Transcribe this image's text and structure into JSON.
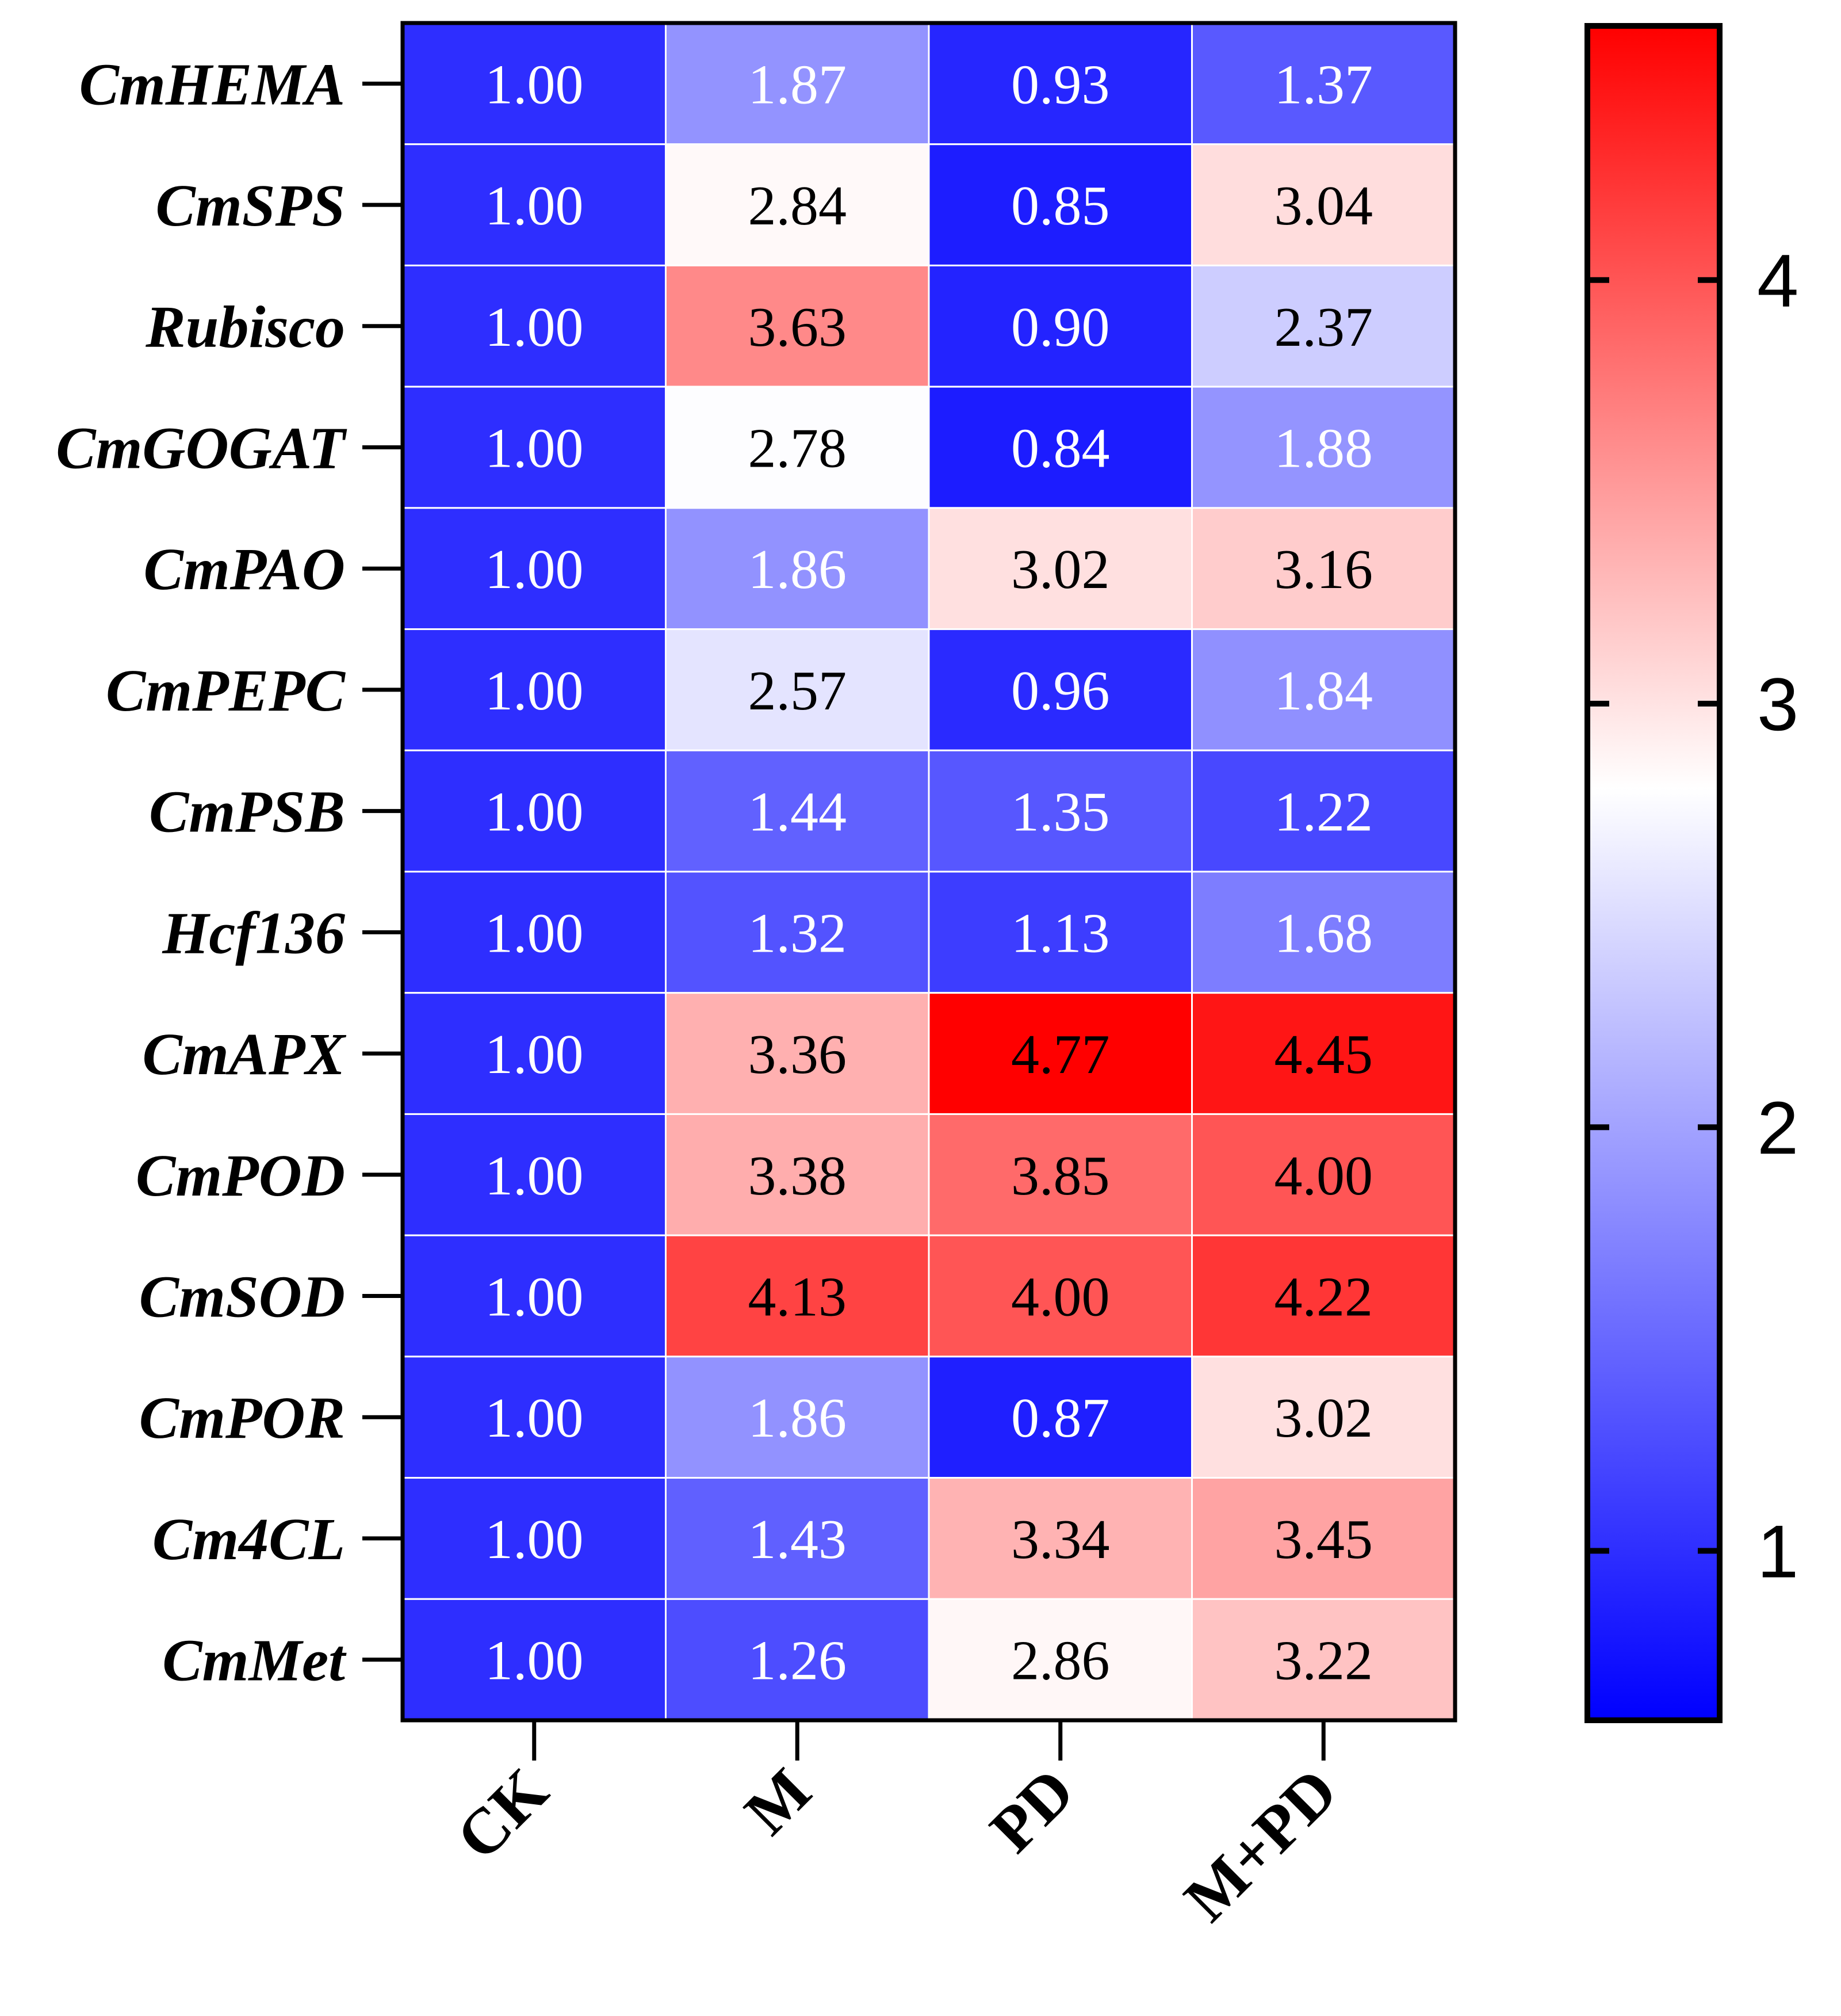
{
  "chart_data": {
    "type": "heatmap",
    "title": "",
    "xlabel": "",
    "ylabel": "",
    "rows": [
      "CmHEMA",
      "CmSPS",
      "Rubisco",
      "CmGOGAT",
      "CmPAO",
      "CmPEPC",
      "CmPSB",
      "Hcf136",
      "CmAPX",
      "CmPOD",
      "CmSOD",
      "CmPOR",
      "Cm4CL",
      "CmMet"
    ],
    "columns": [
      "CK",
      "M",
      "PD",
      "M+PD"
    ],
    "values": [
      [
        1.0,
        1.87,
        0.93,
        1.37
      ],
      [
        1.0,
        2.84,
        0.85,
        3.04
      ],
      [
        1.0,
        3.63,
        0.9,
        2.37
      ],
      [
        1.0,
        2.78,
        0.84,
        1.88
      ],
      [
        1.0,
        1.86,
        3.02,
        3.16
      ],
      [
        1.0,
        2.57,
        0.96,
        1.84
      ],
      [
        1.0,
        1.44,
        1.35,
        1.22
      ],
      [
        1.0,
        1.32,
        1.13,
        1.68
      ],
      [
        1.0,
        3.36,
        4.77,
        4.45
      ],
      [
        1.0,
        3.38,
        3.85,
        4.0
      ],
      [
        1.0,
        4.13,
        4.0,
        4.22
      ],
      [
        1.0,
        1.86,
        0.87,
        3.02
      ],
      [
        1.0,
        1.43,
        3.34,
        3.45
      ],
      [
        1.0,
        1.26,
        2.86,
        3.22
      ]
    ],
    "value_labels": [
      [
        "1.00",
        "1.87",
        "0.93",
        "1.37"
      ],
      [
        "1.00",
        "2.84",
        "0.85",
        "3.04"
      ],
      [
        "1.00",
        "3.63",
        "0.90",
        "2.37"
      ],
      [
        "1.00",
        "2.78",
        "0.84",
        "1.88"
      ],
      [
        "1.00",
        "1.86",
        "3.02",
        "3.16"
      ],
      [
        "1.00",
        "2.57",
        "0.96",
        "1.84"
      ],
      [
        "1.00",
        "1.44",
        "1.35",
        "1.22"
      ],
      [
        "1.00",
        "1.32",
        "1.13",
        "1.68"
      ],
      [
        "1.00",
        "3.36",
        "4.77",
        "4.45"
      ],
      [
        "1.00",
        "3.38",
        "3.85",
        "4.00"
      ],
      [
        "1.00",
        "4.13",
        "4.00",
        "4.22"
      ],
      [
        "1.00",
        "1.86",
        "0.87",
        "3.02"
      ],
      [
        "1.00",
        "1.43",
        "3.34",
        "3.45"
      ],
      [
        "1.00",
        "1.26",
        "2.86",
        "3.22"
      ]
    ],
    "colorbar": {
      "min": 0.6,
      "mid": 2.8,
      "max": 4.6,
      "ticks": [
        1,
        2,
        3,
        4
      ],
      "tick_labels": [
        "1",
        "2",
        "3",
        "4"
      ],
      "low_color": "#0000ff",
      "mid_color": "#ffffff",
      "high_color": "#ff0000"
    },
    "legend": "right"
  }
}
